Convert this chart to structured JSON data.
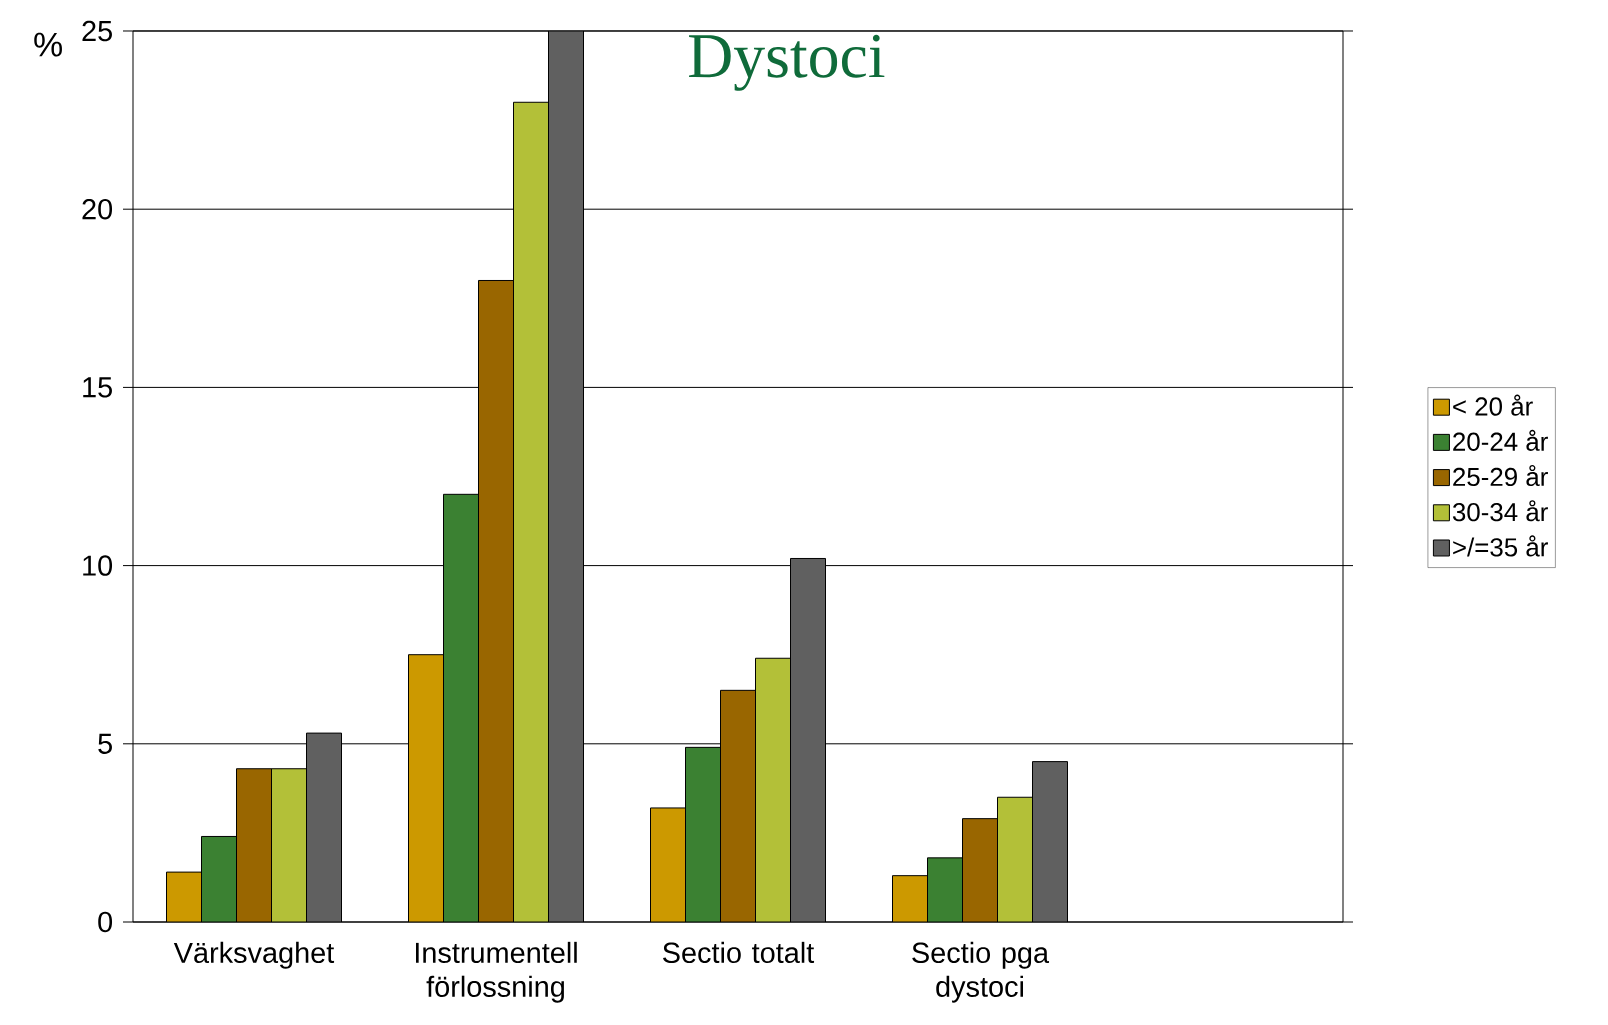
{
  "chart_data": {
    "type": "bar",
    "title": "Dystoci",
    "ylabel": "%",
    "categories": [
      "Värksvaghet",
      "Instrumentell förlossning",
      "Sectio totalt",
      "Sectio pga dystoci",
      null
    ],
    "series": [
      {
        "name": "< 20 år",
        "color": "#cc9900",
        "values": [
          1.4,
          7.5,
          3.2,
          1.3,
          null
        ]
      },
      {
        "name": "20-24 år",
        "color": "#3b8132",
        "values": [
          2.4,
          12.0,
          4.9,
          1.8,
          null
        ]
      },
      {
        "name": "25-29 år",
        "color": "#996600",
        "values": [
          4.3,
          18.0,
          6.5,
          2.9,
          null
        ]
      },
      {
        "name": "30-34 år",
        "color": "#b3c038",
        "values": [
          4.3,
          23.0,
          7.4,
          3.5,
          null
        ]
      },
      {
        "name": ">/=35 år",
        "color": "#606060",
        "values": [
          5.3,
          25.0,
          10.2,
          4.5,
          null
        ]
      }
    ],
    "ylim": [
      0,
      25
    ],
    "yticks": [
      0,
      5,
      10,
      15,
      20,
      25
    ],
    "grid": "y",
    "legend": "right"
  }
}
